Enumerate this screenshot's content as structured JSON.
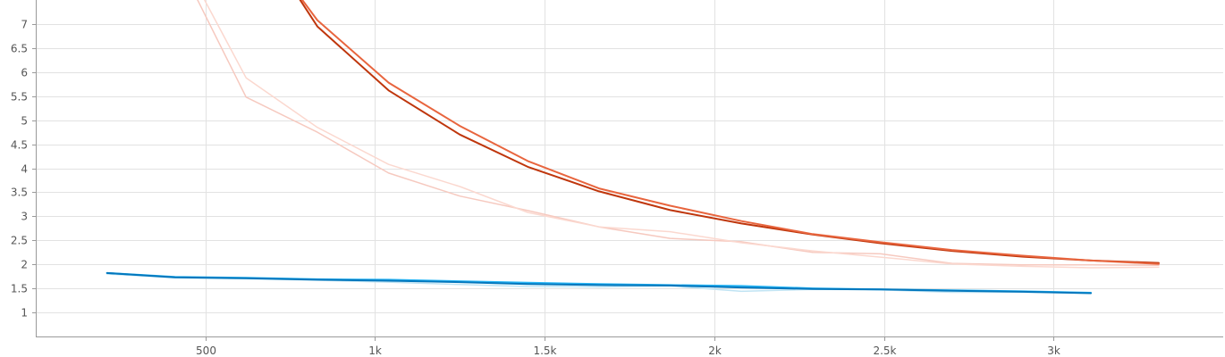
{
  "chart_data": {
    "type": "line",
    "title": "",
    "xlabel": "",
    "ylabel": "",
    "xlim": [
      0,
      3500
    ],
    "ylim": [
      0.5,
      7.5
    ],
    "grid": true,
    "x_ticks": [
      {
        "value": 500,
        "label": "500"
      },
      {
        "value": 1000,
        "label": "1k"
      },
      {
        "value": 1500,
        "label": "1.5k"
      },
      {
        "value": 2000,
        "label": "2k"
      },
      {
        "value": 2500,
        "label": "2.5k"
      },
      {
        "value": 3000,
        "label": "3k"
      }
    ],
    "y_ticks": [
      {
        "value": 1,
        "label": "1"
      },
      {
        "value": 1.5,
        "label": "1.5"
      },
      {
        "value": 2,
        "label": "2"
      },
      {
        "value": 2.5,
        "label": "2.5"
      },
      {
        "value": 3,
        "label": "3"
      },
      {
        "value": 3.5,
        "label": "3.5"
      },
      {
        "value": 4,
        "label": "4"
      },
      {
        "value": 4.5,
        "label": "4.5"
      },
      {
        "value": 5,
        "label": "5"
      },
      {
        "value": 5.5,
        "label": "5.5"
      },
      {
        "value": 6,
        "label": "6"
      },
      {
        "value": 6.5,
        "label": "6.5"
      },
      {
        "value": 7,
        "label": "7"
      }
    ],
    "series": [
      {
        "color": "#f6c9bf",
        "width": 1.5,
        "x": [
          470,
          620,
          830,
          1040,
          1250,
          1450,
          1660,
          1870,
          2080,
          2290,
          2490,
          2700,
          2910,
          3110,
          3310
        ],
        "y": [
          7.6,
          5.48,
          4.75,
          3.9,
          3.42,
          3.12,
          2.78,
          2.54,
          2.47,
          2.25,
          2.22,
          2.02,
          1.99,
          1.99,
          1.98
        ]
      },
      {
        "color": "#fbd8cf",
        "width": 1.5,
        "x": [
          490,
          620,
          830,
          1040,
          1250,
          1450,
          1660,
          1870,
          2080,
          2290,
          2490,
          2700,
          2910,
          3110,
          3310
        ],
        "y": [
          7.6,
          5.88,
          4.85,
          4.08,
          3.62,
          3.08,
          2.78,
          2.68,
          2.45,
          2.28,
          2.15,
          2.01,
          1.96,
          1.93,
          1.94
        ]
      },
      {
        "color": "#bf360c",
        "width": 2,
        "x": [
          770,
          830,
          1040,
          1250,
          1450,
          1660,
          1870,
          2080,
          2290,
          2490,
          2700,
          2910,
          3110,
          3310
        ],
        "y": [
          7.6,
          6.95,
          5.62,
          4.7,
          4.03,
          3.52,
          3.13,
          2.85,
          2.62,
          2.44,
          2.28,
          2.16,
          2.08,
          2.03
        ]
      },
      {
        "color": "#e8653e",
        "width": 2,
        "x": [
          775,
          830,
          1040,
          1250,
          1450,
          1660,
          1870,
          2080,
          2290,
          2490,
          2700,
          2910,
          3110,
          3310
        ],
        "y": [
          7.6,
          7.08,
          5.78,
          4.88,
          4.15,
          3.58,
          3.22,
          2.9,
          2.63,
          2.46,
          2.3,
          2.18,
          2.08,
          2.01
        ]
      },
      {
        "color": "#bfe3f3",
        "width": 1.5,
        "x": [
          210,
          410,
          620,
          830,
          1040,
          1250,
          1450,
          1660,
          1870,
          2080,
          2290,
          2490,
          2700,
          2910,
          3110
        ],
        "y": [
          1.8,
          1.72,
          1.7,
          1.67,
          1.63,
          1.58,
          1.54,
          1.53,
          1.55,
          1.44,
          1.48,
          1.47,
          1.42,
          1.42,
          1.4
        ]
      },
      {
        "color": "#29b6f6",
        "width": 2,
        "x": [
          210,
          410,
          620,
          830,
          1040,
          1250,
          1450,
          1660,
          1870,
          2080,
          2290,
          2490,
          2700,
          2910,
          3110
        ],
        "y": [
          1.82,
          1.74,
          1.72,
          1.69,
          1.68,
          1.65,
          1.62,
          1.59,
          1.57,
          1.55,
          1.5,
          1.48,
          1.46,
          1.44,
          1.41
        ]
      },
      {
        "color": "#0277bd",
        "width": 2,
        "x": [
          210,
          410,
          620,
          830,
          1040,
          1250,
          1450,
          1660,
          1870,
          2080,
          2290,
          2490,
          2700,
          2910,
          3110
        ],
        "y": [
          1.82,
          1.73,
          1.71,
          1.68,
          1.66,
          1.63,
          1.59,
          1.57,
          1.56,
          1.52,
          1.49,
          1.48,
          1.45,
          1.43,
          1.4
        ]
      }
    ]
  }
}
